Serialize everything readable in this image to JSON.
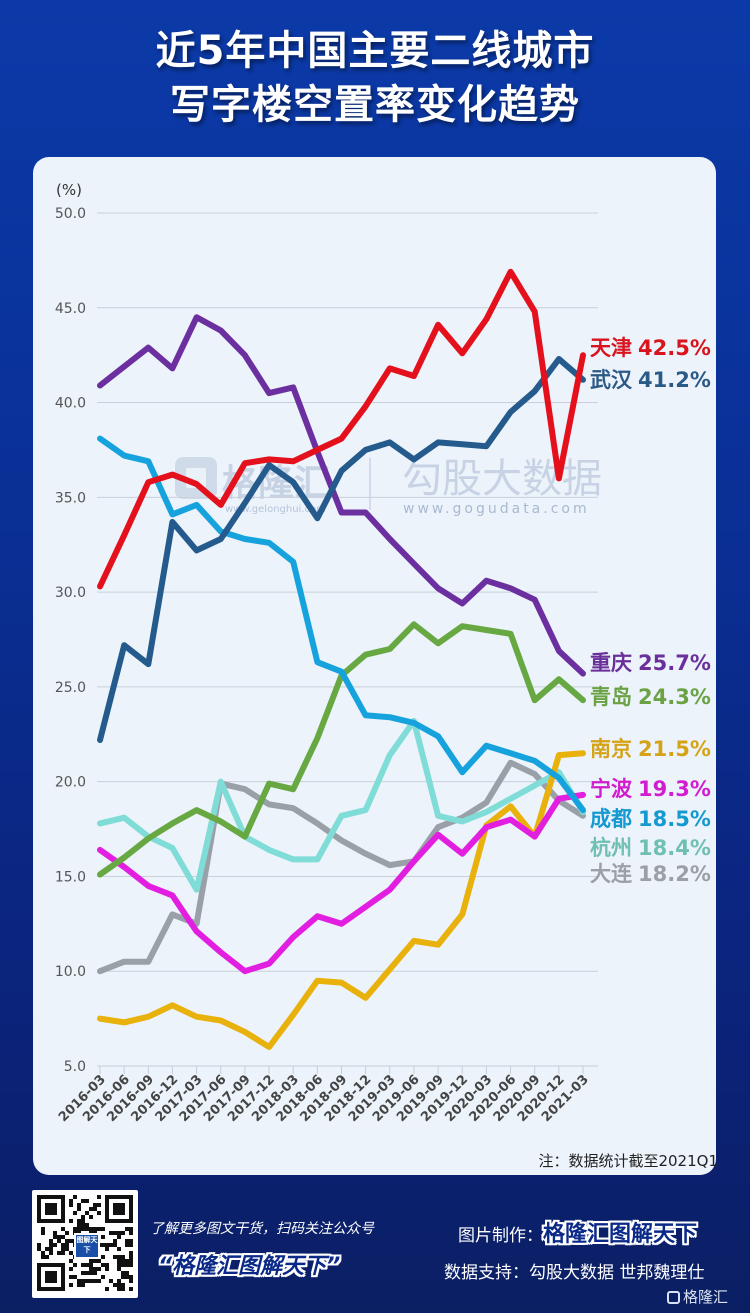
{
  "header": {
    "title_line1": "近5年中国主要二线城市",
    "title_line2": "写字楼空置率变化趋势"
  },
  "watermarks": {
    "gelonghui": "格隆汇",
    "gelonghui_url": "www.gelonghui.com",
    "gogudata": "勾股大数据",
    "gogudata_url": "www.gogudata.com"
  },
  "note": "注：数据统计截至2021Q1",
  "footer": {
    "qr_badge": "图解天下",
    "promo_line": "了解更多图文干货，扫码关注公众号",
    "promo_name": "“格隆汇图解天下”",
    "made_by_label": "图片制作：",
    "made_by_brand": "格隆汇图解天下",
    "data_support": "数据支持：勾股大数据  世邦魏理仕",
    "logo_text": "格隆汇"
  },
  "chart_data": {
    "type": "line",
    "title": "近5年中国主要二线城市写字楼空置率变化趋势",
    "ylabel": "(%)",
    "xlabel": "",
    "ylim": [
      5,
      50
    ],
    "yticks": [
      "50.0",
      "45.0",
      "40.0",
      "35.0",
      "30.0",
      "25.0",
      "20.0",
      "15.0",
      "10.0",
      "5.0"
    ],
    "ytick_values": [
      50,
      45,
      40,
      35,
      30,
      25,
      20,
      15,
      10,
      5
    ],
    "grid": true,
    "legend": "right-end-labels",
    "x": [
      "2016-03",
      "2016-06",
      "2016-09",
      "2016-12",
      "2017-03",
      "2017-06",
      "2017-09",
      "2017-12",
      "2018-03",
      "2018-06",
      "2018-09",
      "2018-12",
      "2019-03",
      "2019-06",
      "2019-09",
      "2019-12",
      "2020-03",
      "2020-06",
      "2020-09",
      "2020-12",
      "2021-03"
    ],
    "series": [
      {
        "name": "天津",
        "label": "42.5%",
        "color": "#e4111c",
        "values": [
          30.3,
          33.0,
          35.8,
          36.2,
          35.7,
          34.6,
          36.8,
          37.0,
          36.9,
          37.5,
          38.1,
          39.8,
          41.8,
          41.4,
          44.1,
          42.6,
          44.4,
          46.9,
          44.8,
          36.0,
          42.5
        ]
      },
      {
        "name": "武汉",
        "label": "41.2%",
        "color": "#245a8c",
        "values": [
          22.2,
          27.2,
          26.2,
          33.7,
          32.2,
          32.8,
          34.7,
          36.7,
          35.8,
          33.9,
          36.4,
          37.5,
          37.9,
          37.0,
          37.9,
          37.8,
          37.7,
          39.5,
          40.6,
          42.3,
          41.2
        ]
      },
      {
        "name": "重庆",
        "label": "25.7%",
        "color": "#6c2fa0",
        "values": [
          40.9,
          41.9,
          42.9,
          41.8,
          44.5,
          43.8,
          42.5,
          40.5,
          40.8,
          37.4,
          34.2,
          34.2,
          32.8,
          31.5,
          30.2,
          29.4,
          30.6,
          30.2,
          29.6,
          26.9,
          25.7
        ]
      },
      {
        "name": "青岛",
        "label": "24.3%",
        "color": "#68a843",
        "values": [
          15.1,
          16.0,
          17.0,
          17.8,
          18.5,
          17.9,
          17.1,
          19.9,
          19.6,
          22.3,
          25.6,
          26.7,
          27.0,
          28.3,
          27.3,
          28.2,
          28.0,
          27.8,
          24.3,
          25.4,
          24.3
        ]
      },
      {
        "name": "南京",
        "label": "21.5%",
        "color": "#e8b10c",
        "values": [
          7.5,
          7.3,
          7.6,
          8.2,
          7.6,
          7.4,
          6.8,
          6.0,
          7.7,
          9.5,
          9.4,
          8.6,
          10.1,
          11.6,
          11.4,
          13.0,
          17.7,
          18.7,
          17.1,
          21.4,
          21.5
        ]
      },
      {
        "name": "宁波",
        "label": "19.3%",
        "color": "#e21fe0",
        "values": [
          16.4,
          15.5,
          14.5,
          14.0,
          12.1,
          11.0,
          10.0,
          10.4,
          11.8,
          12.9,
          12.5,
          13.4,
          14.3,
          15.8,
          17.2,
          16.2,
          17.6,
          18.0,
          17.1,
          19.1,
          19.3
        ]
      },
      {
        "name": "成都",
        "label": "18.5%",
        "color": "#16a3dd",
        "values": [
          38.1,
          37.2,
          36.9,
          34.1,
          34.6,
          33.2,
          32.8,
          32.6,
          31.6,
          26.3,
          25.8,
          23.5,
          23.4,
          23.1,
          22.4,
          20.5,
          21.9,
          21.5,
          21.1,
          20.2,
          18.5
        ]
      },
      {
        "name": "杭州",
        "label": "18.4%",
        "color": "#7fdcd6",
        "values": [
          17.8,
          18.1,
          17.1,
          16.5,
          14.3,
          20.0,
          17.1,
          16.4,
          15.9,
          15.9,
          18.2,
          18.5,
          21.4,
          23.2,
          18.2,
          17.9,
          18.4,
          19.1,
          19.8,
          20.5,
          18.4
        ]
      },
      {
        "name": "大连",
        "label": "18.2%",
        "color": "#9aa0a8",
        "values": [
          10.0,
          10.5,
          10.5,
          13.0,
          12.5,
          19.9,
          19.6,
          18.8,
          18.6,
          17.8,
          16.9,
          16.2,
          15.6,
          15.8,
          17.6,
          18.1,
          18.9,
          21.0,
          20.4,
          19.0,
          18.2
        ]
      }
    ],
    "label_colors": {
      "天津": "#d9141e",
      "武汉": "#2c5a87",
      "重庆": "#6a2f9a",
      "青岛": "#6aa244",
      "南京": "#d6a317",
      "宁波": "#d11cd0",
      "成都": "#1499d0",
      "杭州": "#6fc0b0",
      "大连": "#9ba0a6"
    }
  }
}
